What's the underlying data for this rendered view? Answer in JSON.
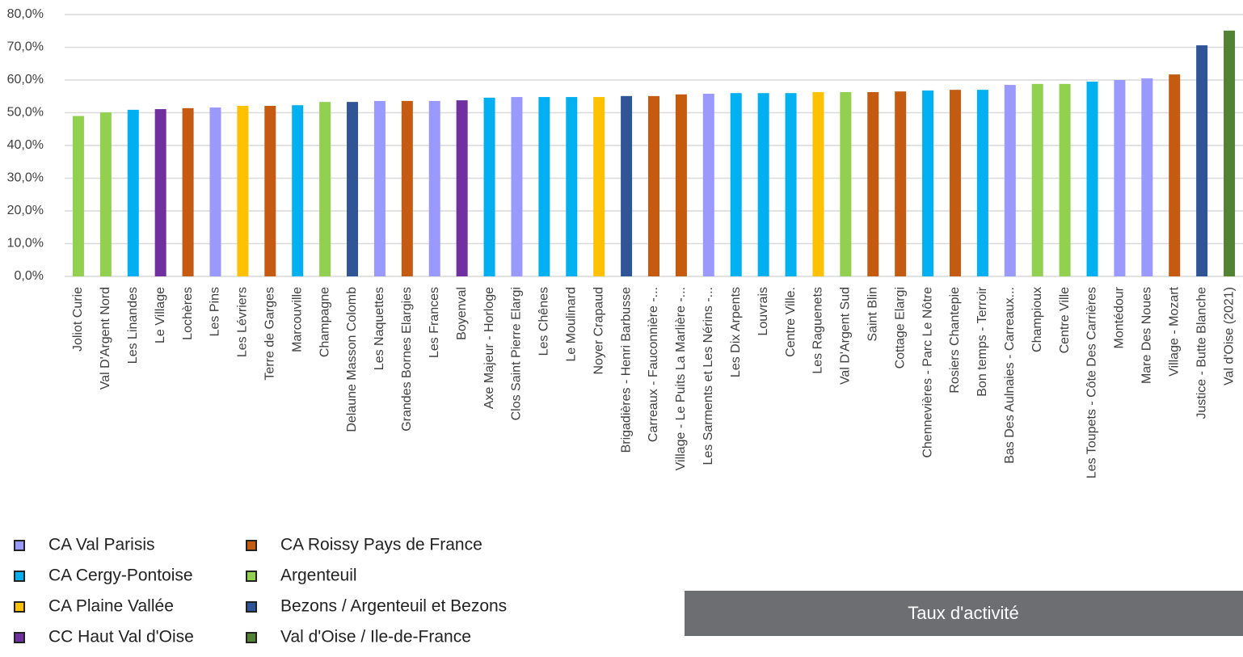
{
  "chart_data": {
    "type": "bar",
    "title": "Taux d'activité",
    "categories": [
      "Joliot Curie",
      "Val D'Argent Nord",
      "Les Linandes",
      "Le Village",
      "Lochères",
      "Les Pins",
      "Les Lévriers",
      "Terre de Garges",
      "Marcouville",
      "Champagne",
      "Delaune Masson Colomb",
      "Les Naquettes",
      "Grandes Bornes Elargies",
      "Les Frances",
      "Boyenval",
      "Axe Majeur - Horloge",
      "Clos Saint Pierre Elargi",
      "Les Chênes",
      "Le Moulinard",
      "Noyer Crapaud",
      "Brigadières - Henri Barbusse",
      "Carreaux - Fauconnière -...",
      "Village - Le Puits La Marlière -...",
      "Les Sarments et Les Nérins -...",
      "Les Dix Arpents",
      "Louvrais",
      "Centre Ville.",
      "Les Raguenets",
      "Val D'Argent Sud",
      "Saint Blin",
      "Cottage Elargi",
      "Chennevières - Parc Le Nôtre",
      "Rosiers Chantepie",
      "Bon temps - Terroir",
      "Bas Des Aulnaies - Carreaux...",
      "Champioux",
      "Centre Ville",
      "Les Toupets - Côte Des Carrières",
      "Montédour",
      "Mare Des Noues",
      "Village - Mozart",
      "Justice - Butte Blanche",
      "Val d'Oise (2021)"
    ],
    "values": [
      49.0,
      50.1,
      50.9,
      51.1,
      51.4,
      51.6,
      52.1,
      52.1,
      52.3,
      53.3,
      53.3,
      53.6,
      53.6,
      53.6,
      53.8,
      54.6,
      54.8,
      54.8,
      54.8,
      54.8,
      55.1,
      55.1,
      55.6,
      55.8,
      56.0,
      56.0,
      56.0,
      56.3,
      56.3,
      56.3,
      56.5,
      56.8,
      57.0,
      57.0,
      58.5,
      58.8,
      58.8,
      59.5,
      60.0,
      60.5,
      61.7,
      70.6,
      75.1
    ],
    "colors": [
      "#92d050",
      "#92d050",
      "#00b0f0",
      "#7030a0",
      "#c55a11",
      "#9999ff",
      "#ffc000",
      "#c55a11",
      "#00b0f0",
      "#92d050",
      "#2f5597",
      "#9999ff",
      "#c55a11",
      "#9999ff",
      "#7030a0",
      "#00b0f0",
      "#9999ff",
      "#00b0f0",
      "#00b0f0",
      "#ffc000",
      "#2f5597",
      "#c55a11",
      "#c55a11",
      "#9999ff",
      "#00b0f0",
      "#00b0f0",
      "#00b0f0",
      "#ffc000",
      "#92d050",
      "#c55a11",
      "#c55a11",
      "#00b0f0",
      "#c55a11",
      "#00b0f0",
      "#9999ff",
      "#92d050",
      "#92d050",
      "#00b0f0",
      "#9999ff",
      "#9999ff",
      "#c55a11",
      "#2f5597",
      "#548235"
    ],
    "legend": [
      {
        "name": "CA Val Parisis",
        "color": "#9999ff"
      },
      {
        "name": "CA Cergy-Pontoise",
        "color": "#00b0f0"
      },
      {
        "name": "CA Plaine Vallée",
        "color": "#ffc000"
      },
      {
        "name": "CC Haut Val d'Oise",
        "color": "#7030a0"
      },
      {
        "name": "CA Roissy Pays de France",
        "color": "#c55a11"
      },
      {
        "name": "Argenteuil",
        "color": "#92d050"
      },
      {
        "name": "Bezons / Argenteuil et Bezons",
        "color": "#2f5597"
      },
      {
        "name": "Val d'Oise / Ile-de-France",
        "color": "#548235"
      }
    ],
    "ylim": [
      0,
      80
    ],
    "yticks": [
      {
        "value": 0,
        "label": "0,0%"
      },
      {
        "value": 10,
        "label": "10,0%"
      },
      {
        "value": 20,
        "label": "20,0%"
      },
      {
        "value": 30,
        "label": "30,0%"
      },
      {
        "value": 40,
        "label": "40,0%"
      },
      {
        "value": 50,
        "label": "50,0%"
      },
      {
        "value": 60,
        "label": "60,0%"
      },
      {
        "value": 70,
        "label": "70,0%"
      },
      {
        "value": 80,
        "label": "80,0%"
      }
    ],
    "grid": true
  }
}
